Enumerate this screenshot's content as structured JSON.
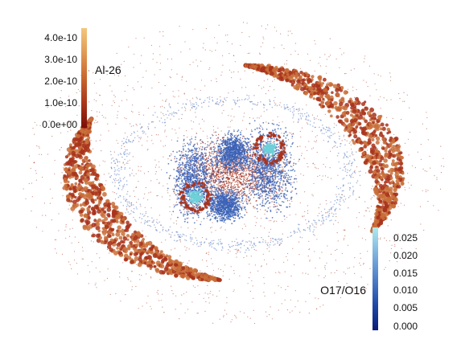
{
  "colorbar_top_left": {
    "label": "Al-26",
    "ticks": [
      "4.0e-10",
      "3.0e-10",
      "2.0e-10",
      "1.0e-10",
      "0.0e+00"
    ],
    "colormap": [
      "#7a0f08",
      "#a8361a",
      "#c8662e",
      "#e09a52",
      "#f3c67e"
    ]
  },
  "colorbar_bottom_right": {
    "label": "O17/O16",
    "ticks": [
      "0.025",
      "0.020",
      "0.015",
      "0.010",
      "0.005",
      "0.000"
    ],
    "colormap": [
      "#0a1c7a",
      "#1f4aa8",
      "#4f7fc9",
      "#7fb3de",
      "#aeeaf0"
    ]
  },
  "scene_colors": {
    "red_particles": "#a8321c",
    "orange_particles": "#c9703a",
    "blue_particles": "#3b63b8",
    "cyan_particles": "#6fd0d8",
    "background": "#ffffff"
  }
}
